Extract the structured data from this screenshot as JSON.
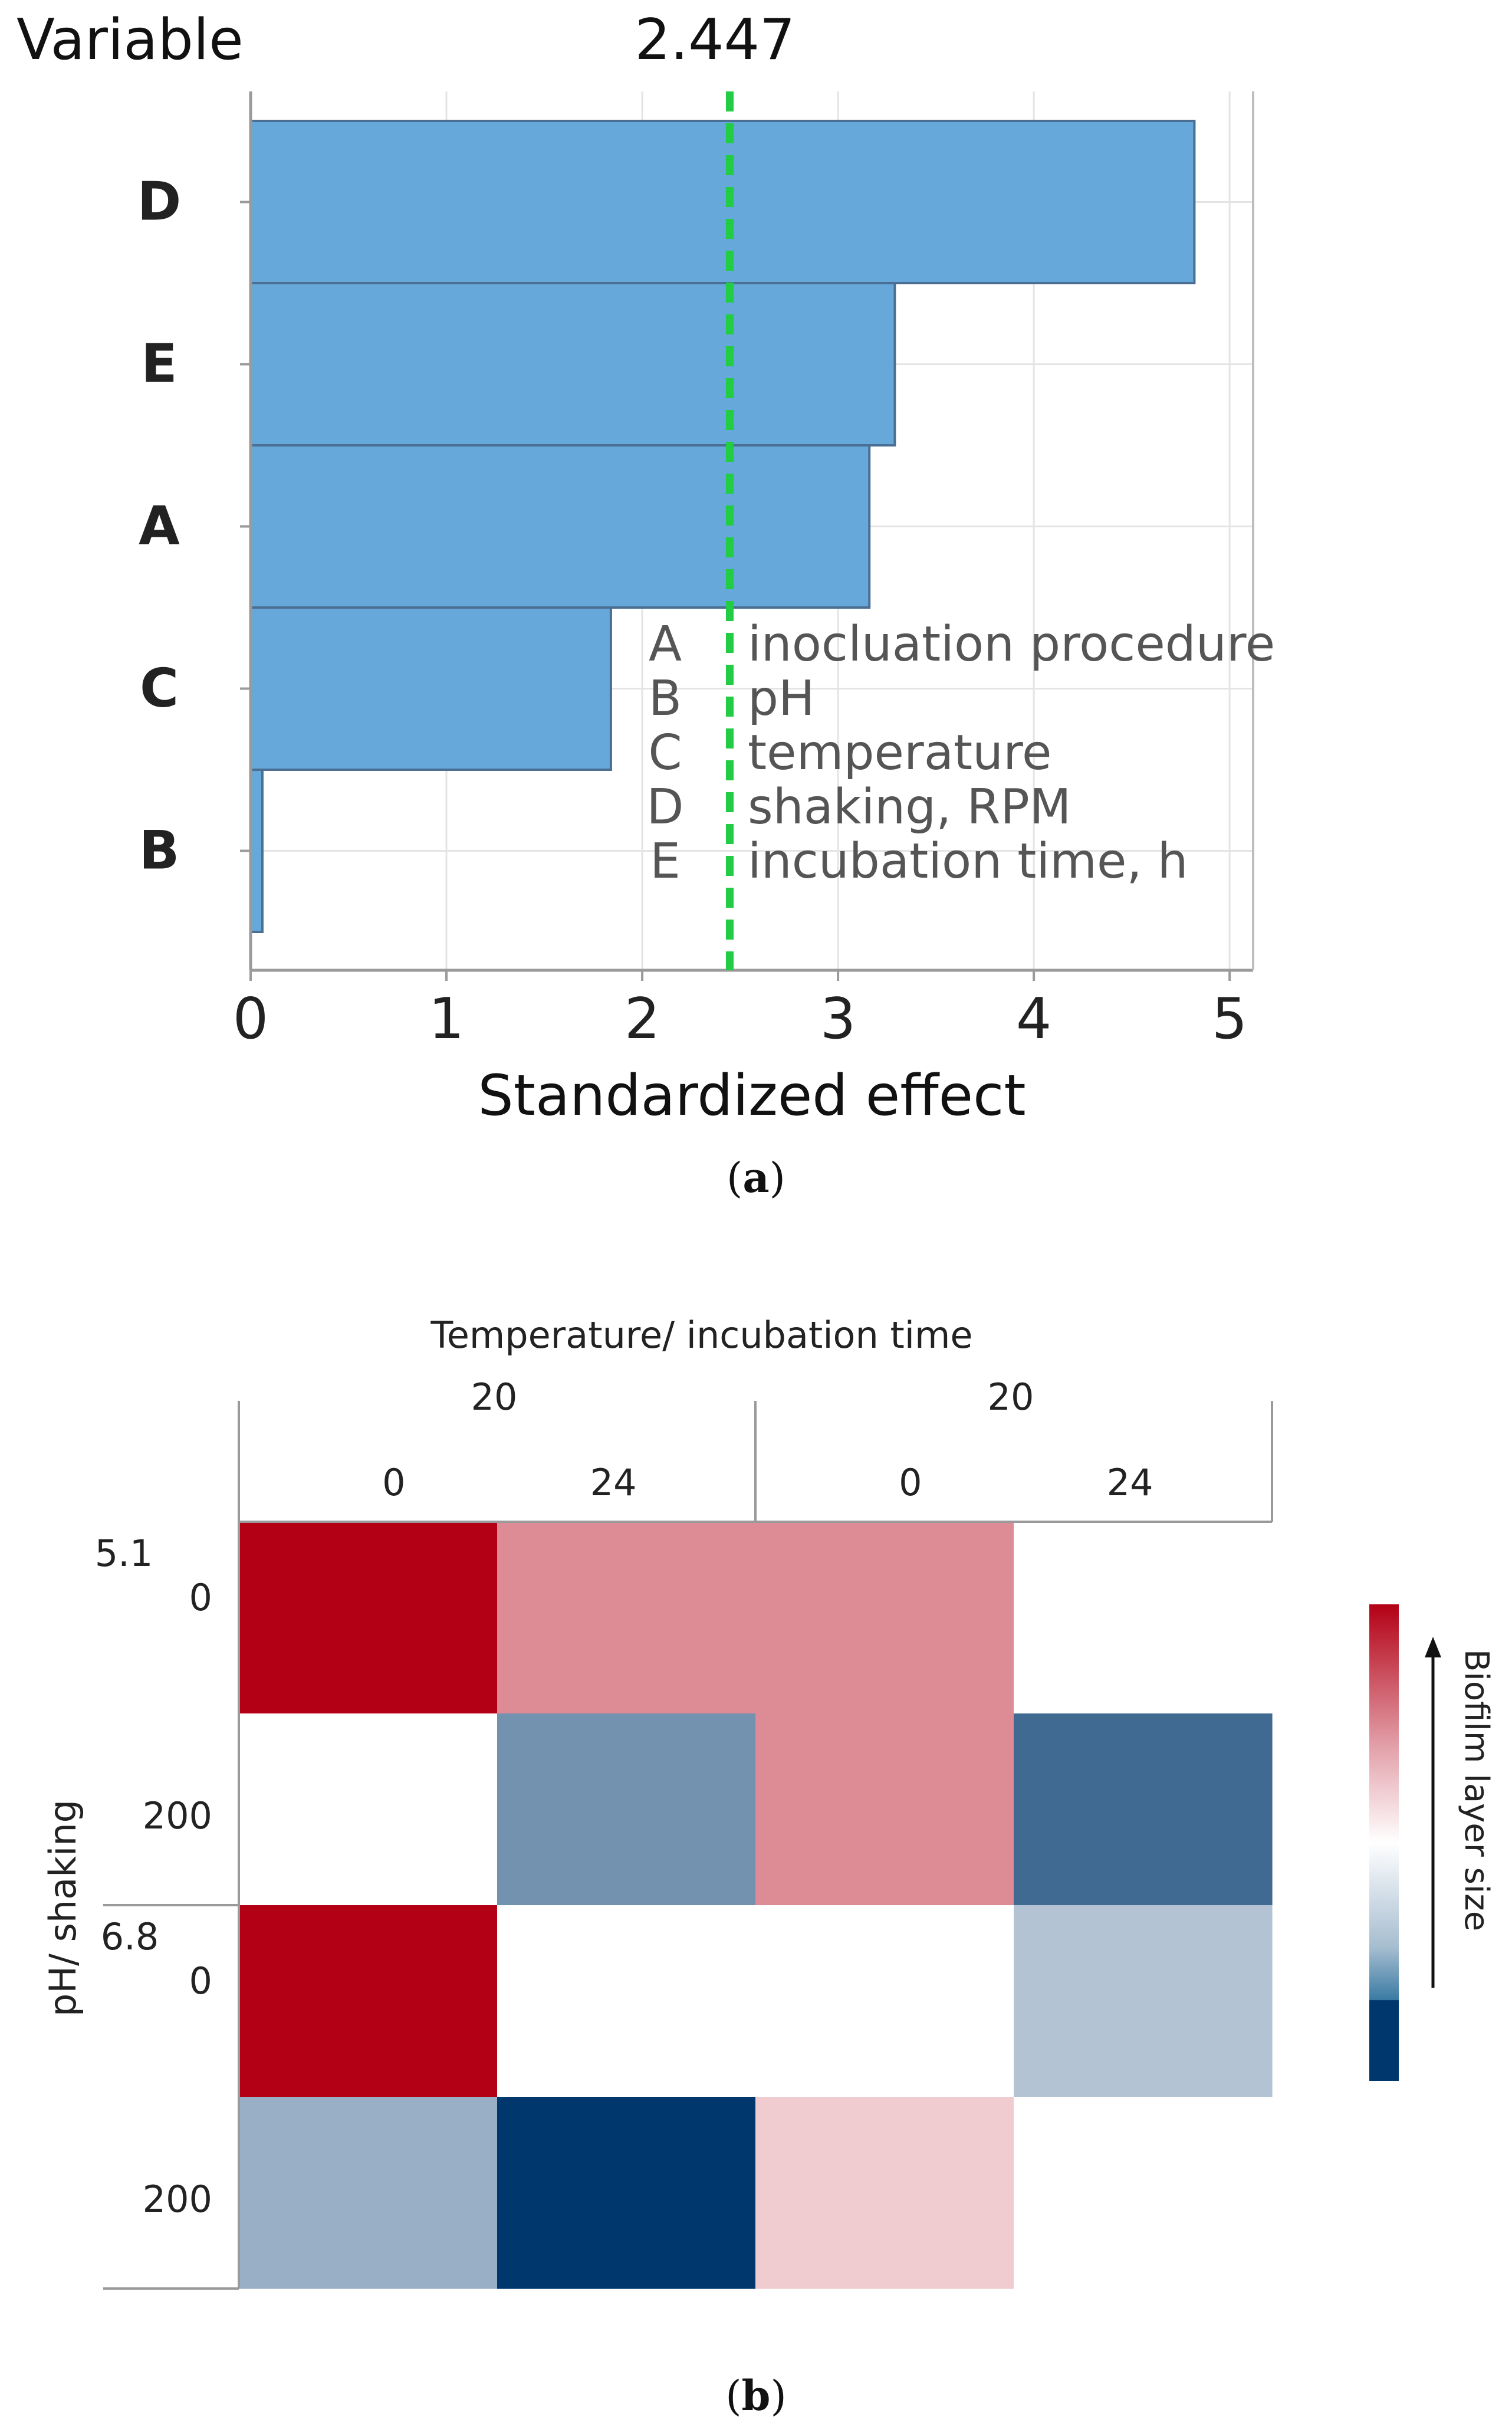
{
  "chart_data": [
    {
      "type": "bar",
      "orientation": "horizontal",
      "panel_label": "a",
      "title": "",
      "ylabel": "Variable",
      "xlabel": "Standardized effect",
      "categories": [
        "D",
        "E",
        "A",
        "C",
        "B"
      ],
      "values": [
        4.82,
        3.29,
        3.16,
        1.84,
        0.06
      ],
      "xlim": [
        0,
        5.12
      ],
      "xticks": [
        "0",
        "1",
        "2",
        "3",
        "4",
        "5"
      ],
      "grid": true,
      "bar_color": "#66a8da",
      "reference_line": {
        "value": 2.447,
        "label": "2.447",
        "color": "#22cc44"
      },
      "legend": {
        "placement": "bottom-right",
        "entries": [
          {
            "key": "A",
            "text": "inocluation procedure"
          },
          {
            "key": "B",
            "text": "pH"
          },
          {
            "key": "C",
            "text": "temperature"
          },
          {
            "key": "D",
            "text": "shaking, RPM"
          },
          {
            "key": "E",
            "text": "incubation time, h"
          }
        ]
      }
    },
    {
      "type": "heatmap",
      "panel_label": "b",
      "title": "",
      "column_header_title": "Temperature/ incubation time",
      "row_header_title": "pH/ shaking",
      "column_groups": [
        {
          "label": "20",
          "subcolumns": [
            "0",
            "24"
          ]
        },
        {
          "label": "20",
          "subcolumns": [
            "0",
            "24"
          ]
        }
      ],
      "row_groups": [
        {
          "label": "5.1",
          "subrows": [
            "0",
            "200"
          ]
        },
        {
          "label": "6.8",
          "subrows": [
            "0",
            "200"
          ]
        }
      ],
      "values": [
        [
          1.0,
          0.45,
          0.45,
          0.0
        ],
        [
          0.0,
          -0.55,
          0.45,
          -0.75
        ],
        [
          1.0,
          0.0,
          0.0,
          -0.3
        ],
        [
          -0.4,
          -1.0,
          0.2,
          0.0
        ]
      ],
      "value_range": [
        -1,
        1
      ],
      "colorbar": {
        "label": "Biofilm layer size",
        "placement": "right",
        "colors": [
          "#b30015",
          "#e3a1aa",
          "#ffffff",
          "#a6bdd0",
          "#3a7ba3",
          "#00386e"
        ]
      }
    }
  ]
}
